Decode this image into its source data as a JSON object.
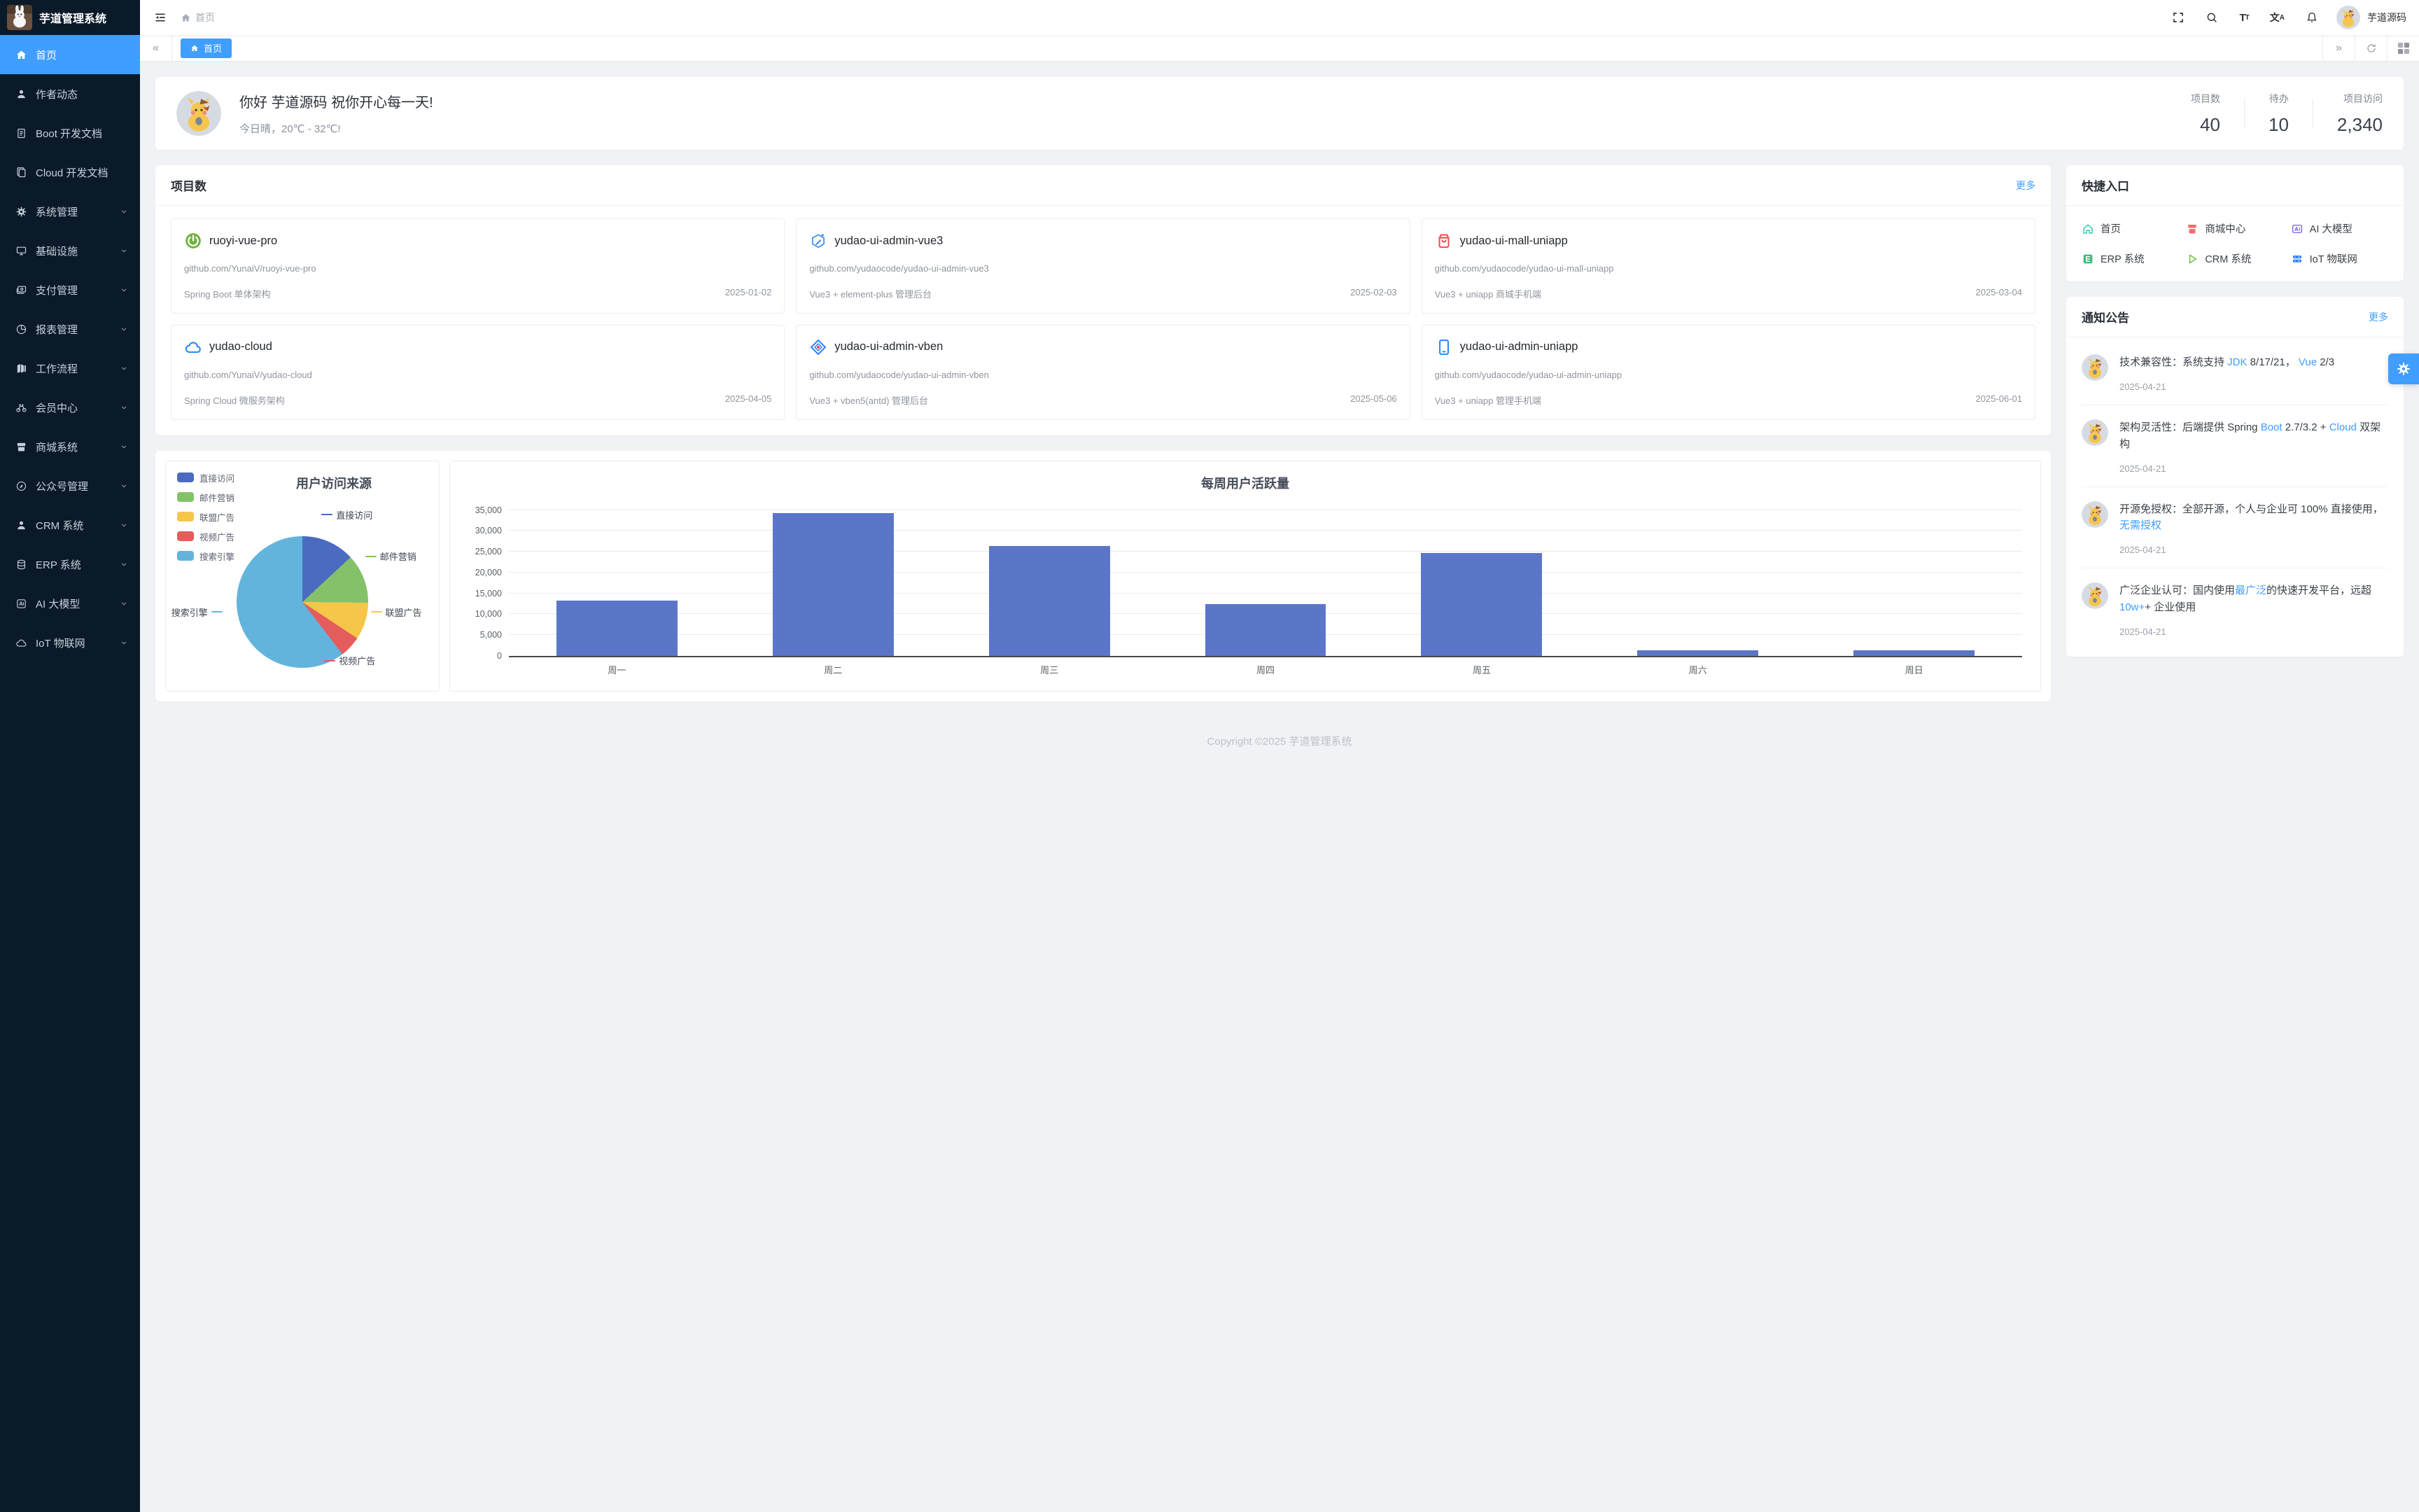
{
  "theme": {
    "accent": "#409eff",
    "sidebar_bg": "#0b1a29",
    "content_bg": "#f0f2f5",
    "bar_color": "#5b76c8"
  },
  "app": {
    "title": "芋道管理系统",
    "username": "芋道源码",
    "copyright": "Copyright ©2025 芋道管理系统"
  },
  "navbar": {
    "breadcrumb": "首页"
  },
  "tabbar": {
    "active_tab": "首页"
  },
  "welcome": {
    "greeting": "你好 芋道源码 祝你开心每一天!",
    "weather": "今日晴，20℃ - 32℃!",
    "stats": [
      {
        "label": "项目数",
        "value": "40"
      },
      {
        "label": "待办",
        "value": "10"
      },
      {
        "label": "项目访问",
        "value": "2,340"
      }
    ]
  },
  "sidebar": {
    "items": [
      {
        "id": "home",
        "label": "首页",
        "icon": "home",
        "active": true,
        "expandable": false
      },
      {
        "id": "author",
        "label": "作者动态",
        "icon": "user",
        "active": false,
        "expandable": false
      },
      {
        "id": "boot-doc",
        "label": "Boot 开发文档",
        "icon": "doc",
        "active": false,
        "expandable": false
      },
      {
        "id": "cloud-doc",
        "label": "Cloud 开发文档",
        "icon": "docs",
        "active": false,
        "expandable": false
      },
      {
        "id": "system",
        "label": "系统管理",
        "icon": "gear",
        "active": false,
        "expandable": true
      },
      {
        "id": "infra",
        "label": "基础设施",
        "icon": "monitor",
        "active": false,
        "expandable": true
      },
      {
        "id": "pay",
        "label": "支付管理",
        "icon": "wallet",
        "active": false,
        "expandable": true
      },
      {
        "id": "report",
        "label": "报表管理",
        "icon": "piechart",
        "active": false,
        "expandable": true
      },
      {
        "id": "workflow",
        "label": "工作流程",
        "icon": "workflow",
        "active": false,
        "expandable": true
      },
      {
        "id": "member",
        "label": "会员中心",
        "icon": "bicycle",
        "active": false,
        "expandable": true
      },
      {
        "id": "mall",
        "label": "商城系统",
        "icon": "shop",
        "active": false,
        "expandable": true
      },
      {
        "id": "mp",
        "label": "公众号管理",
        "icon": "compass",
        "active": false,
        "expandable": true
      },
      {
        "id": "crm",
        "label": "CRM 系统",
        "icon": "person",
        "active": false,
        "expandable": true
      },
      {
        "id": "erp",
        "label": "ERP 系统",
        "icon": "coins",
        "active": false,
        "expandable": true
      },
      {
        "id": "ai",
        "label": "AI 大模型",
        "icon": "ai",
        "active": false,
        "expandable": true
      },
      {
        "id": "iot",
        "label": "IoT 物联网",
        "icon": "iot",
        "active": false,
        "expandable": true
      }
    ]
  },
  "projects": {
    "title": "项目数",
    "more": "更多",
    "cards": [
      {
        "name": "ruoyi-vue-pro",
        "repo": "github.com/YunaiV/ruoyi-vue-pro",
        "desc": "Spring Boot 单体架构",
        "date": "2025-01-02",
        "icon": "spring"
      },
      {
        "name": "yudao-ui-admin-vue3",
        "repo": "github.com/yudaocode/yudao-ui-admin-vue3",
        "desc": "Vue3 + element-plus 管理后台",
        "date": "2025-02-03",
        "icon": "vue"
      },
      {
        "name": "yudao-ui-mall-uniapp",
        "repo": "github.com/yudaocode/yudao-ui-mall-uniapp",
        "desc": "Vue3 + uniapp 商城手机端",
        "date": "2025-03-04",
        "icon": "bag"
      },
      {
        "name": "yudao-cloud",
        "repo": "github.com/YunaiV/yudao-cloud",
        "desc": "Spring Cloud 微服务架构",
        "date": "2025-04-05",
        "icon": "cloud"
      },
      {
        "name": "yudao-ui-admin-vben",
        "repo": "github.com/yudaocode/yudao-ui-admin-vben",
        "desc": "Vue3 + vben5(antd) 管理后台",
        "date": "2025-05-06",
        "icon": "vben"
      },
      {
        "name": "yudao-ui-admin-uniapp",
        "repo": "github.com/yudaocode/yudao-ui-admin-uniapp",
        "desc": "Vue3 + uniapp 管理手机端",
        "date": "2025-06-01",
        "icon": "phone"
      }
    ]
  },
  "shortcuts": {
    "title": "快捷入口",
    "items": [
      {
        "label": "首页",
        "icon": "sc-home",
        "color": "#2ec7b5"
      },
      {
        "label": "商城中心",
        "icon": "sc-mall",
        "color": "#f56c6c"
      },
      {
        "label": "AI 大模型",
        "icon": "sc-ai",
        "color": "#7b5bf2"
      },
      {
        "label": "ERP 系统",
        "icon": "sc-erp",
        "color": "#3dbe7b"
      },
      {
        "label": "CRM 系统",
        "icon": "sc-crm",
        "color": "#6dc24b"
      },
      {
        "label": "IoT 物联网",
        "icon": "sc-iot",
        "color": "#2b7cf6"
      }
    ]
  },
  "notices": {
    "title": "通知公告",
    "more": "更多",
    "items": [
      {
        "date": "2025-04-21",
        "segments": [
          {
            "text": "技术兼容性：系统支持 ",
            "link": false
          },
          {
            "text": "JDK",
            "link": true
          },
          {
            "text": " 8/17/21， ",
            "link": false
          },
          {
            "text": "Vue",
            "link": true
          },
          {
            "text": " 2/3",
            "link": false
          }
        ]
      },
      {
        "date": "2025-04-21",
        "segments": [
          {
            "text": "架构灵活性：后端提供 Spring ",
            "link": false
          },
          {
            "text": "Boot",
            "link": true
          },
          {
            "text": " 2.7/3.2 + ",
            "link": false
          },
          {
            "text": "Cloud",
            "link": true
          },
          {
            "text": " 双架构",
            "link": false
          }
        ]
      },
      {
        "date": "2025-04-21",
        "segments": [
          {
            "text": "开源免授权：全部开源，个人与企业可 100% 直接使用，",
            "link": false
          },
          {
            "text": "无需授权",
            "link": true
          }
        ]
      },
      {
        "date": "2025-04-21",
        "segments": [
          {
            "text": "广泛企业认可：国内使用",
            "link": false
          },
          {
            "text": "最广泛",
            "link": true
          },
          {
            "text": "的快速开发平台，远超 ",
            "link": false
          },
          {
            "text": "10w+",
            "link": true
          },
          {
            "text": "+ 企业使用",
            "link": false
          }
        ]
      }
    ]
  },
  "icons": {
    "fold": "hamburger-with-left-arrow",
    "fullscreen": "corner-brackets",
    "search": "magnifier",
    "font-size": "Tt",
    "language": "文A",
    "bell": "notification-bell",
    "refresh": "circular-arrow",
    "layout": "four-squares",
    "scroll-left": "«",
    "scroll-right": "»",
    "settings": "gear",
    "home": "house",
    "breadcrumb-home": "house"
  },
  "chart_data": [
    {
      "type": "pie",
      "title": "用户访问来源",
      "legend_position": "top-left",
      "series": [
        {
          "name": "直接访问",
          "value": 335,
          "color": "#4a6bbf"
        },
        {
          "name": "邮件营销",
          "value": 310,
          "color": "#84c269"
        },
        {
          "name": "联盟广告",
          "value": 234,
          "color": "#f5c64a"
        },
        {
          "name": "视频广告",
          "value": 135,
          "color": "#e45c5c"
        },
        {
          "name": "搜索引擎",
          "value": 1548,
          "color": "#63b4dc"
        }
      ]
    },
    {
      "type": "bar",
      "title": "每周用户活跃量",
      "categories": [
        "周一",
        "周二",
        "周三",
        "周四",
        "周五",
        "周六",
        "周日"
      ],
      "values": [
        13253,
        34235,
        26321,
        12340,
        24643,
        1322,
        1324
      ],
      "ylim": [
        0,
        35000
      ],
      "ytick_step": 5000,
      "bar_color": "#5b76c8",
      "grid": true,
      "legend_position": "none"
    }
  ]
}
